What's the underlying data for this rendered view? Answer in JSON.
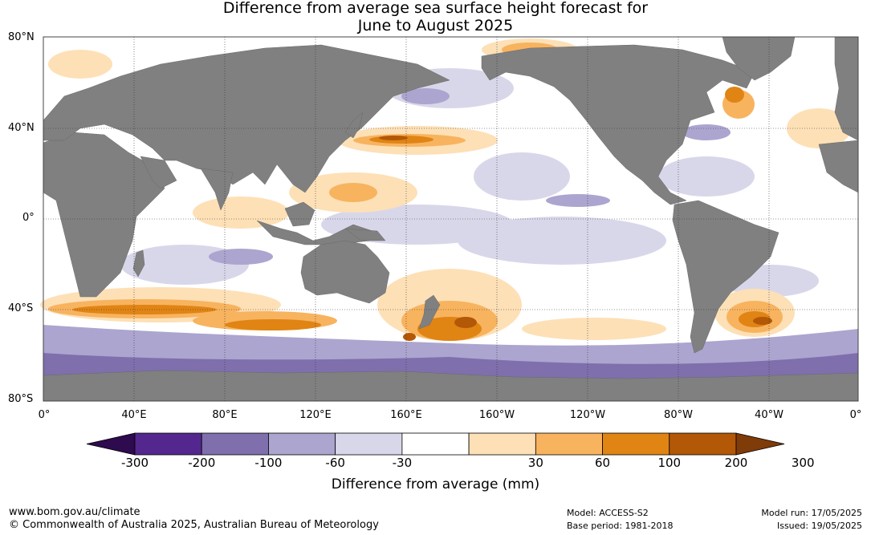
{
  "title": {
    "line1": "Difference from average sea surface height forecast for",
    "line2": "June to August 2025"
  },
  "latitude_labels": [
    "80°N",
    "40°N",
    "0°",
    "40°S",
    "80°S"
  ],
  "longitude_labels": [
    "0°",
    "40°E",
    "80°E",
    "120°E",
    "160°E",
    "160°W",
    "120°W",
    "80°W",
    "40°W",
    "0°"
  ],
  "colorbar": {
    "title": "Difference from average (mm)",
    "tick_labels": [
      "-300",
      "-200",
      "-100",
      "-60",
      "-30",
      "30",
      "60",
      "100",
      "200",
      "300"
    ],
    "colors": [
      "#2e0a4e",
      "#54278f",
      "#7f6fad",
      "#aca5cf",
      "#d8d7ea",
      "#ffffff",
      "#fde0b6",
      "#f8b35f",
      "#e08414",
      "#b35806",
      "#7f3b08"
    ]
  },
  "land_color": "#808080",
  "footer": {
    "url": "www.bom.gov.au/climate",
    "copyright": "© Commonwealth of Australia 2025, Australian Bureau of Meteorology",
    "model": "Model: ACCESS-S2",
    "base_period": "Base period: 1981-2018",
    "model_run": "Model run: 17/05/2025",
    "issued": "Issued: 19/05/2025"
  }
}
